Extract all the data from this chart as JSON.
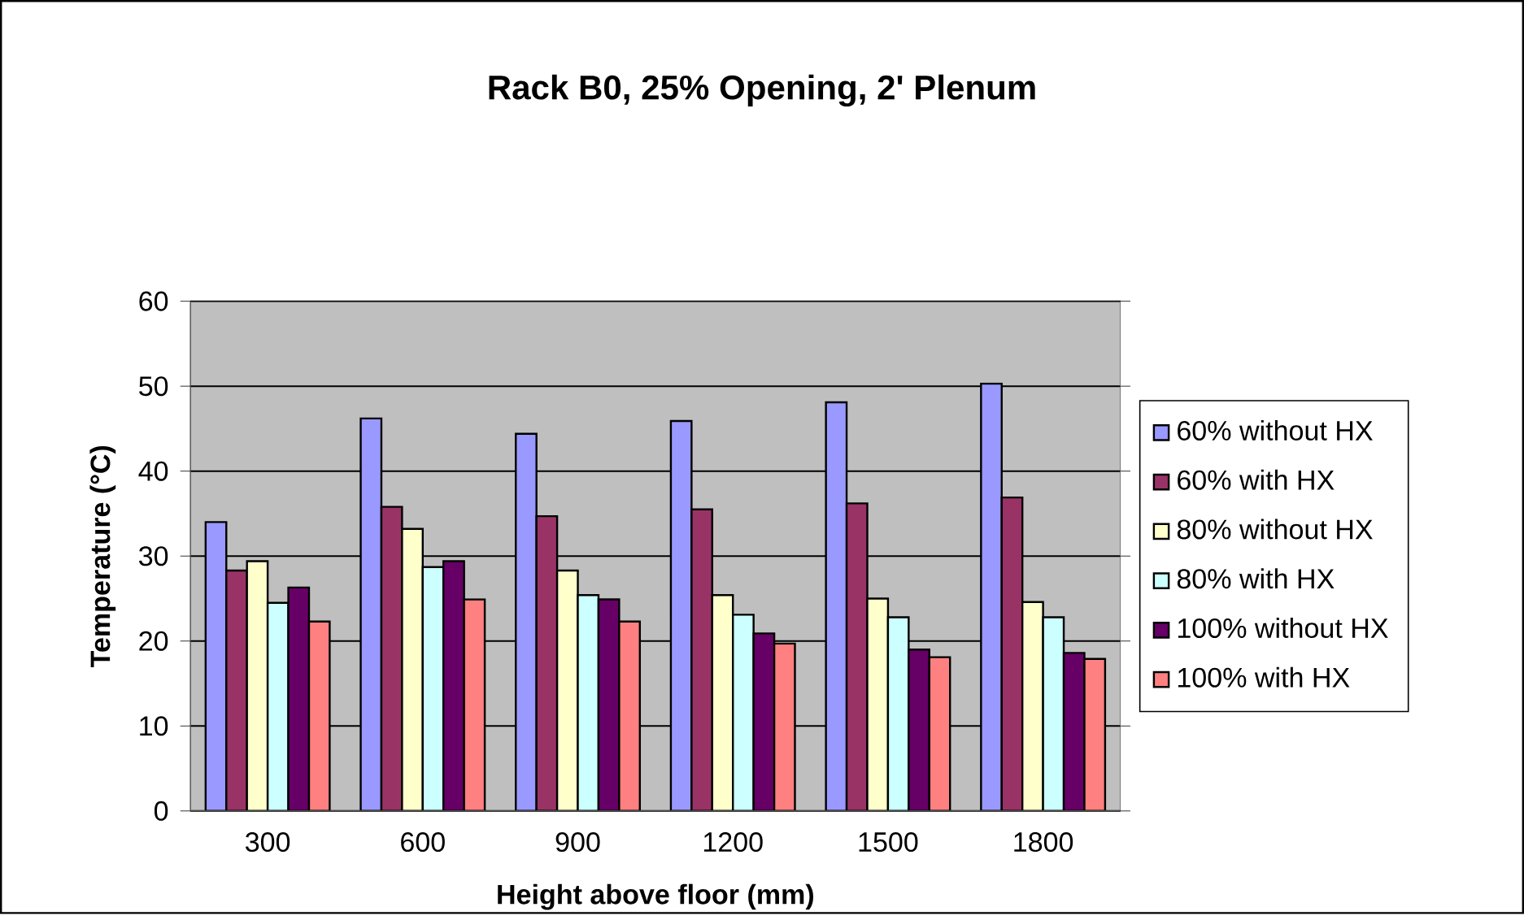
{
  "chart_data": {
    "type": "bar",
    "title": "Rack B0, 25% Opening, 2' Plenum",
    "xlabel": "Height above floor (mm)",
    "ylabel": "Temperature (°C)",
    "categories": [
      "300",
      "600",
      "900",
      "1200",
      "1500",
      "1800"
    ],
    "series": [
      {
        "name": "60% without HX",
        "color": "#9999ff",
        "values": [
          34,
          46.2,
          44.4,
          45.9,
          48.1,
          50.3
        ]
      },
      {
        "name": "60% with HX",
        "color": "#993366",
        "values": [
          28.3,
          35.8,
          34.7,
          35.5,
          36.2,
          36.9
        ]
      },
      {
        "name": "80% without HX",
        "color": "#ffffcc",
        "values": [
          29.4,
          33.2,
          28.3,
          25.4,
          25,
          24.6
        ]
      },
      {
        "name": "80% with HX",
        "color": "#ccffff",
        "values": [
          24.5,
          28.7,
          25.4,
          23.1,
          22.8,
          22.8
        ]
      },
      {
        "name": "100% without HX",
        "color": "#660066",
        "values": [
          26.3,
          29.4,
          24.9,
          20.9,
          19,
          18.6
        ]
      },
      {
        "name": "100% with HX",
        "color": "#ff8080",
        "values": [
          22.3,
          24.9,
          22.3,
          19.7,
          18.1,
          17.9
        ]
      }
    ],
    "ylim": [
      0,
      60
    ],
    "yticks": [
      0,
      10,
      20,
      30,
      40,
      50,
      60
    ],
    "grid": "y",
    "legend": "right"
  }
}
